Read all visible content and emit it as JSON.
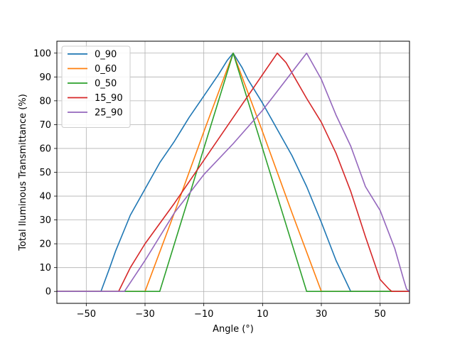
{
  "chart_data": {
    "type": "line",
    "title": "",
    "xlabel": "Angle (°)",
    "ylabel": "Total Iluminous Transmittance (%)",
    "xlim": [
      -60,
      60
    ],
    "ylim": [
      -5,
      105
    ],
    "xticks": [
      -50,
      -30,
      -10,
      10,
      30,
      50
    ],
    "yticks": [
      0,
      10,
      20,
      30,
      40,
      50,
      60,
      70,
      80,
      90,
      100
    ],
    "grid": true,
    "legend_position": "upper-left",
    "series": [
      {
        "name": "0_90",
        "color": "#1f77b4",
        "x": [
          -60,
          -45,
          -42,
          -40,
          -35,
          -30,
          -25,
          -20,
          -15,
          -10,
          -5,
          -2,
          0,
          3,
          5,
          10,
          15,
          20,
          25,
          30,
          35,
          40,
          42,
          45,
          60
        ],
        "y": [
          0,
          0,
          10,
          17,
          32,
          43,
          54,
          63,
          73,
          82,
          91,
          97,
          100,
          94,
          89,
          79,
          68,
          57,
          44,
          29,
          13,
          0,
          0,
          0,
          0
        ]
      },
      {
        "name": "0_60",
        "color": "#ff7f0e",
        "x": [
          -60,
          -30,
          -20,
          -10,
          0,
          10,
          20,
          30,
          60
        ],
        "y": [
          0,
          0,
          33,
          67,
          100,
          67,
          33,
          0,
          0
        ]
      },
      {
        "name": "0_50",
        "color": "#2ca02c",
        "x": [
          -60,
          -25,
          -15,
          -5,
          0,
          5,
          15,
          25,
          60
        ],
        "y": [
          0,
          0,
          40,
          80,
          100,
          80,
          40,
          0,
          0
        ]
      },
      {
        "name": "15_90",
        "color": "#d62728",
        "x": [
          -60,
          -39,
          -35,
          -30,
          -20,
          -10,
          0,
          10,
          15,
          18,
          25,
          30,
          35,
          40,
          45,
          50,
          53,
          54,
          60
        ],
        "y": [
          0,
          0,
          10,
          20,
          37,
          55,
          73,
          91,
          100,
          96,
          81,
          71,
          58,
          42,
          23,
          5,
          1,
          0,
          0
        ]
      },
      {
        "name": "25_90",
        "color": "#9467bd",
        "x": [
          -60,
          -37,
          -30,
          -20,
          -10,
          0,
          10,
          20,
          25,
          30,
          35,
          40,
          45,
          50,
          55,
          58,
          59,
          60
        ],
        "y": [
          0,
          0,
          13,
          33,
          49,
          62,
          76,
          92,
          100,
          89,
          74,
          61,
          44,
          34,
          18,
          5,
          1,
          0
        ]
      }
    ]
  }
}
